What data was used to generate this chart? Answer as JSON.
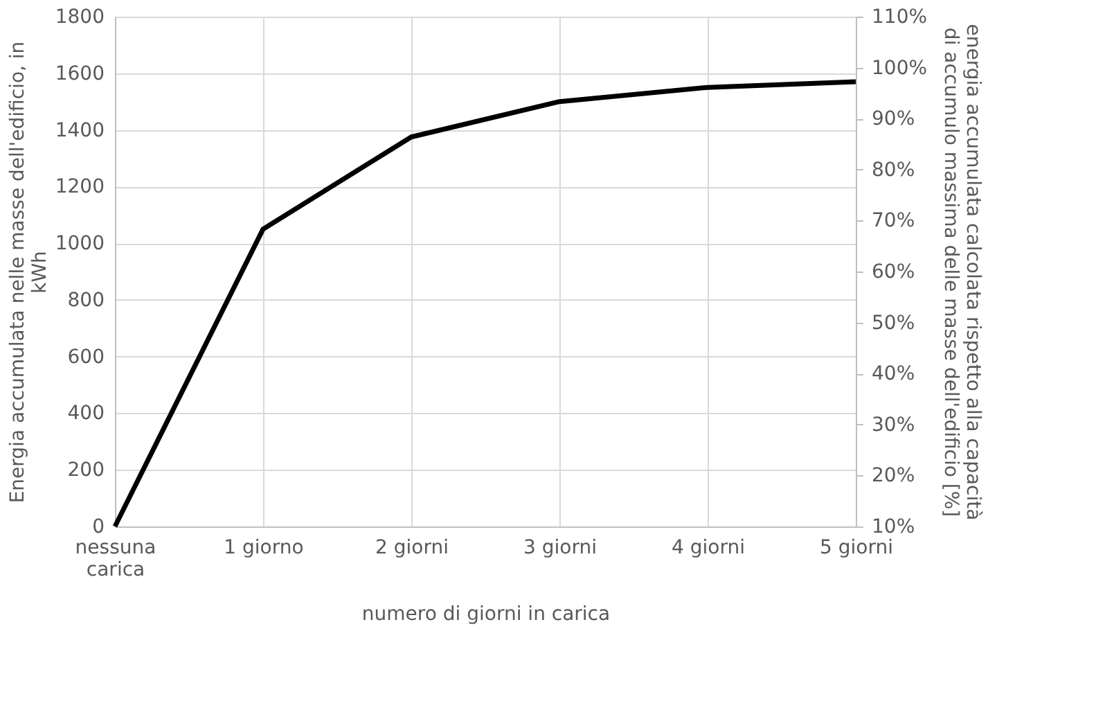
{
  "chart_data": {
    "type": "line",
    "categories": [
      "nessuna carica",
      "1 giorno",
      "2 giorni",
      "3 giorni",
      "4 giorni",
      "5 giorni"
    ],
    "series": [
      {
        "color": "#000000",
        "values": [
          0,
          1050,
          1375,
          1500,
          1550,
          1570
        ]
      }
    ],
    "xlabel": "numero di giorni in carica",
    "ylabel": "Energia accumulata nelle masse dell'edificio, in kWh",
    "y2label": "energia accumulata calcolata rispetto alla capacità di accumulo massima delle masse dell'edificio [%]",
    "ylim": [
      0,
      1800
    ],
    "yticks": [
      0,
      200,
      400,
      600,
      800,
      1000,
      1200,
      1400,
      1600,
      1800
    ],
    "y2lim": [
      10,
      110
    ],
    "y2ticks": [
      {
        "value": 10,
        "label": "10%"
      },
      {
        "value": 20,
        "label": "20%"
      },
      {
        "value": 30,
        "label": "30%"
      },
      {
        "value": 40,
        "label": "40%"
      },
      {
        "value": 50,
        "label": "50%"
      },
      {
        "value": 60,
        "label": "60%"
      },
      {
        "value": 70,
        "label": "70%"
      },
      {
        "value": 80,
        "label": "80%"
      },
      {
        "value": 90,
        "label": "90%"
      },
      {
        "value": 100,
        "label": "100%"
      },
      {
        "value": 110,
        "label": "110%"
      }
    ],
    "grid": true,
    "marker": "none",
    "line_style": "solid"
  }
}
